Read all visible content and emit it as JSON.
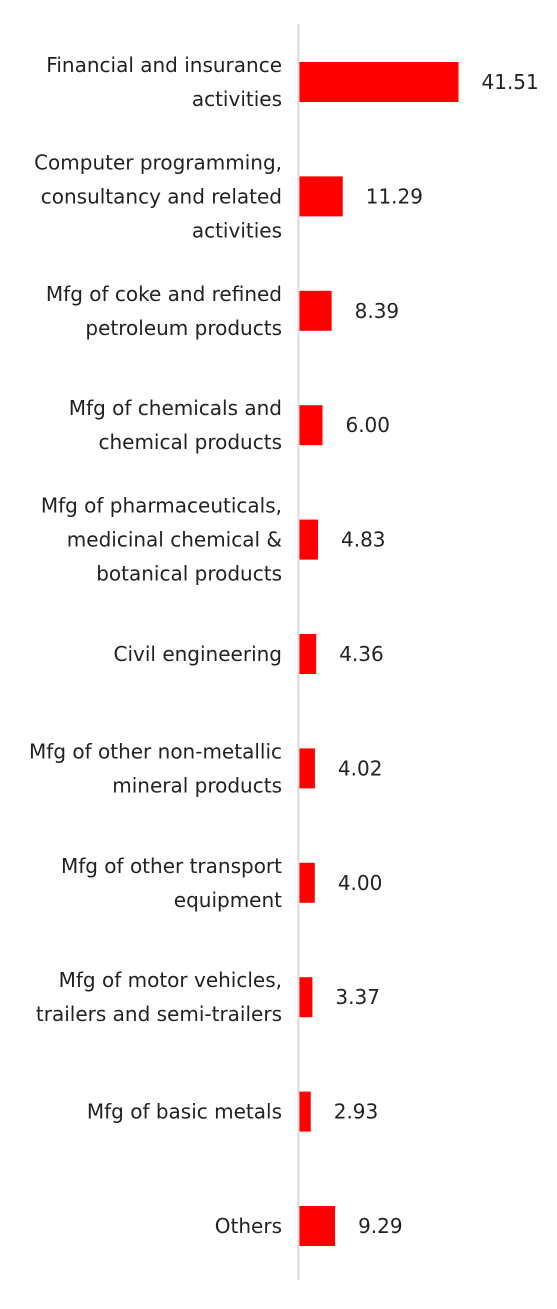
{
  "colors": {
    "bar": "#ff0000",
    "axis": "#d9d9d9",
    "text": "#222222"
  },
  "chart_data": {
    "type": "bar",
    "orientation": "horizontal",
    "grid": false,
    "categories": [
      [
        "Financial and insurance",
        "activities"
      ],
      [
        "Computer programming,",
        "consultancy and related",
        "activities"
      ],
      [
        "Mfg of coke and refined",
        "petroleum products"
      ],
      [
        "Mfg of chemicals and",
        "chemical products"
      ],
      [
        "Mfg of pharmaceuticals,",
        "medicinal chemical &",
        "botanical products"
      ],
      [
        "Civil engineering"
      ],
      [
        "Mfg of other non-metallic",
        "mineral products"
      ],
      [
        "Mfg of other transport",
        "equipment"
      ],
      [
        "Mfg of motor vehicles,",
        "trailers and semi-trailers"
      ],
      [
        "Mfg of basic metals"
      ],
      [
        "Others"
      ]
    ],
    "values": [
      41.51,
      11.29,
      8.39,
      6.0,
      4.83,
      4.36,
      4.02,
      4.0,
      3.37,
      2.93,
      9.29
    ],
    "value_labels": [
      "41.51",
      "11.29",
      "8.39",
      "6.00",
      "4.83",
      "4.36",
      "4.02",
      "4.00",
      "3.37",
      "2.93",
      "9.29"
    ],
    "xlim": [
      0,
      41.51
    ]
  }
}
